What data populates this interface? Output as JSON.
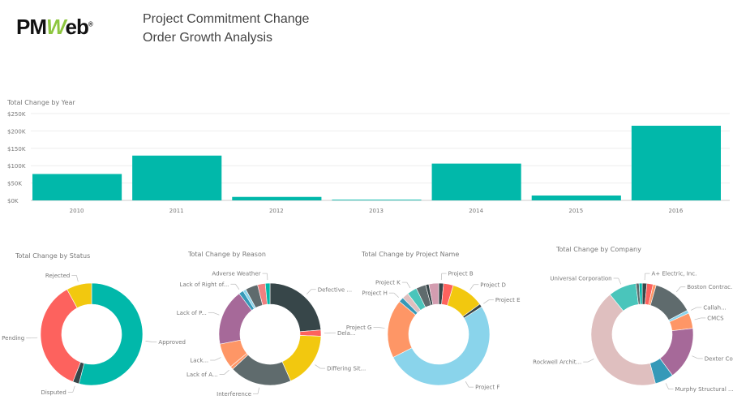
{
  "header": {
    "logo": "PMWeb",
    "title_line1": "Project Commitment Change",
    "title_line2": "Order Growth Analysis"
  },
  "chart_data": [
    {
      "type": "bar",
      "title": "Total Change by Year",
      "categories": [
        "2010",
        "2011",
        "2012",
        "2013",
        "2014",
        "2015",
        "2016"
      ],
      "values": [
        76000,
        129000,
        10000,
        2000,
        106000,
        14000,
        215000
      ],
      "ylim": [
        0,
        250000
      ],
      "yticks": [
        "$0K",
        "$50K",
        "$100K",
        "$150K",
        "$200K",
        "$250K"
      ],
      "color": "#01B8AA",
      "grid": true
    },
    {
      "type": "pie",
      "donut": true,
      "title": "Total Change by Status",
      "slices": [
        {
          "label": "Approved",
          "value": 54,
          "color": "#01B8AA"
        },
        {
          "label": "Disputed",
          "value": 2,
          "color": "#374649"
        },
        {
          "label": "Pending",
          "value": 36,
          "color": "#FD625E"
        },
        {
          "label": "Rejected",
          "value": 8,
          "color": "#F2C80F"
        }
      ]
    },
    {
      "type": "pie",
      "donut": true,
      "title": "Total Change by Reason",
      "slices": [
        {
          "label": "Defective ...",
          "value": 24,
          "color": "#374649"
        },
        {
          "label": "Dela...",
          "value": 2,
          "color": "#FD625E"
        },
        {
          "label": "Differing Sit...",
          "value": 18,
          "color": "#F2C80F"
        },
        {
          "label": "Interference",
          "value": 20,
          "color": "#5F6B6D"
        },
        {
          "label": "Lack of A...",
          "value": 1,
          "color": "#FE9666"
        },
        {
          "label": "Lack...",
          "value": 8,
          "color": "#FE9666"
        },
        {
          "label": "Lack of P...",
          "value": 18,
          "color": "#A66999"
        },
        {
          "label": "Lack of Right of...",
          "value": 1.5,
          "color": "#3599B8"
        },
        {
          "label": "",
          "value": 1,
          "color": "#8AD4EB"
        },
        {
          "label": "",
          "value": 4,
          "color": "#5F6B6D"
        },
        {
          "label": "",
          "value": 2.5,
          "color": "#F08080"
        },
        {
          "label": "Adverse Weather",
          "value": 1.5,
          "color": "#01B8AA"
        }
      ]
    },
    {
      "type": "pie",
      "donut": true,
      "title": "Total Change by Project Name",
      "slices": [
        {
          "label": "Project B",
          "value": 1.5,
          "color": "#374649"
        },
        {
          "label": "",
          "value": 3,
          "color": "#FD625E"
        },
        {
          "label": "Project D",
          "value": 10,
          "color": "#F2C80F"
        },
        {
          "label": "Project E",
          "value": 1,
          "color": "#374649"
        },
        {
          "label": "Project F",
          "value": 50,
          "color": "#8AD4EB"
        },
        {
          "label": "Project G",
          "value": 18,
          "color": "#FE9666"
        },
        {
          "label": "Project H",
          "value": 1.5,
          "color": "#3599B8"
        },
        {
          "label": "",
          "value": 2,
          "color": "#DFBFBF"
        },
        {
          "label": "Project K",
          "value": 3,
          "color": "#4AC5BB"
        },
        {
          "label": "",
          "value": 3,
          "color": "#5F6B6D"
        },
        {
          "label": "",
          "value": 1,
          "color": "#374649"
        },
        {
          "label": "",
          "value": 3,
          "color": "#D39DB0"
        }
      ]
    },
    {
      "type": "pie",
      "donut": true,
      "title": "Total Change by Company",
      "slices": [
        {
          "label": "A+ Electric, Inc.",
          "value": 1.5,
          "color": "#374649"
        },
        {
          "label": "",
          "value": 2,
          "color": "#FD625E"
        },
        {
          "label": "",
          "value": 1,
          "color": "#FE9666"
        },
        {
          "label": "Boston Contrac...",
          "value": 13,
          "color": "#5F6B6D"
        },
        {
          "label": "Callah...",
          "value": 1,
          "color": "#8AD4EB"
        },
        {
          "label": "CMCS",
          "value": 5,
          "color": "#FE9666"
        },
        {
          "label": "Dexter Co...",
          "value": 17,
          "color": "#A66999"
        },
        {
          "label": "Murphy Structural ...",
          "value": 6,
          "color": "#3599B8"
        },
        {
          "label": "Rockwell Archit...",
          "value": 44,
          "color": "#DFBFBF"
        },
        {
          "label": "Universal Corporation",
          "value": 9,
          "color": "#4AC5BB"
        },
        {
          "label": "",
          "value": 1,
          "color": "#5F6B6D"
        },
        {
          "label": "",
          "value": 1,
          "color": "#01B8AA"
        }
      ]
    }
  ]
}
